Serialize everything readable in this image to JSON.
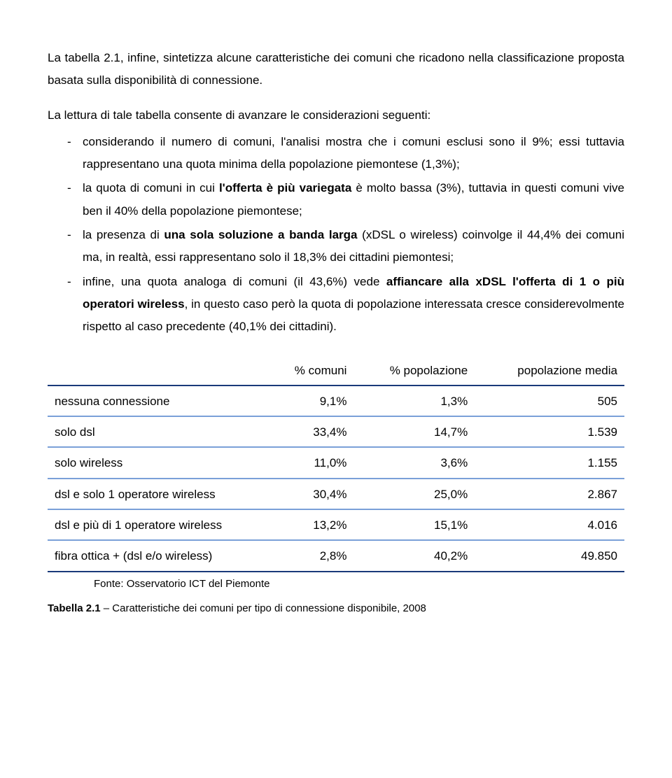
{
  "intro": {
    "p1a": "La tabella 2.1, infine, sintetizza alcune caratteristiche dei comuni che ricadono nella classificazione proposta basata sulla disponibilità di connessione.",
    "p2a": "La lettura di tale tabella consente di avanzare le considerazioni  seguenti:"
  },
  "bullets": {
    "b1": "considerando il numero di comuni, l'analisi mostra che i comuni esclusi sono il 9%; essi tuttavia rappresentano una quota minima della popolazione piemontese (1,3%);",
    "b2a": "la quota di comuni in cui ",
    "b2b": "l'offerta è più variegata",
    "b2c": " è molto bassa (3%), tuttavia in questi comuni vive ben il 40% della popolazione piemontese;",
    "b3a": "la presenza di ",
    "b3b": "una sola soluzione a banda larga",
    "b3c": " (xDSL o wireless) coinvolge il 44,4% dei comuni ma, in realtà, essi rappresentano solo il 18,3% dei cittadini piemontesi;",
    "b4a": "infine, una quota analoga di comuni (il 43,6%) vede ",
    "b4b": "affiancare alla xDSL l'offerta di 1 o più operatori wireless",
    "b4c": ", in questo caso però la quota di popolazione interessata cresce considerevolmente rispetto al caso precedente (40,1% dei cittadini)."
  },
  "table": {
    "headers": {
      "h1": "% comuni",
      "h2": "% popolazione",
      "h3": "popolazione media"
    },
    "rows": [
      {
        "label": "nessuna connessione",
        "c1": "9,1%",
        "c2": "1,3%",
        "c3": "505"
      },
      {
        "label": "solo dsl",
        "c1": "33,4%",
        "c2": "14,7%",
        "c3": "1.539"
      },
      {
        "label": "solo wireless",
        "c1": "11,0%",
        "c2": "3,6%",
        "c3": "1.155"
      },
      {
        "label": "dsl e solo 1 operatore wireless",
        "c1": "30,4%",
        "c2": "25,0%",
        "c3": "2.867"
      },
      {
        "label": "dsl e più di 1 operatore wireless",
        "c1": "13,2%",
        "c2": "15,1%",
        "c3": "4.016"
      },
      {
        "label": "fibra ottica + (dsl e/o wireless)",
        "c1": "2,8%",
        "c2": "40,2%",
        "c3": "49.850"
      }
    ],
    "source": "Fonte: Osservatorio ICT del Piemonte",
    "caption_a": "Tabella 2.1",
    "caption_b": " – Caratteristiche dei comuni per tipo di connessione disponibile, 2008"
  },
  "colors": {
    "dark_rule": "#1a3a7a",
    "light_rule": "#7aa0d8"
  }
}
